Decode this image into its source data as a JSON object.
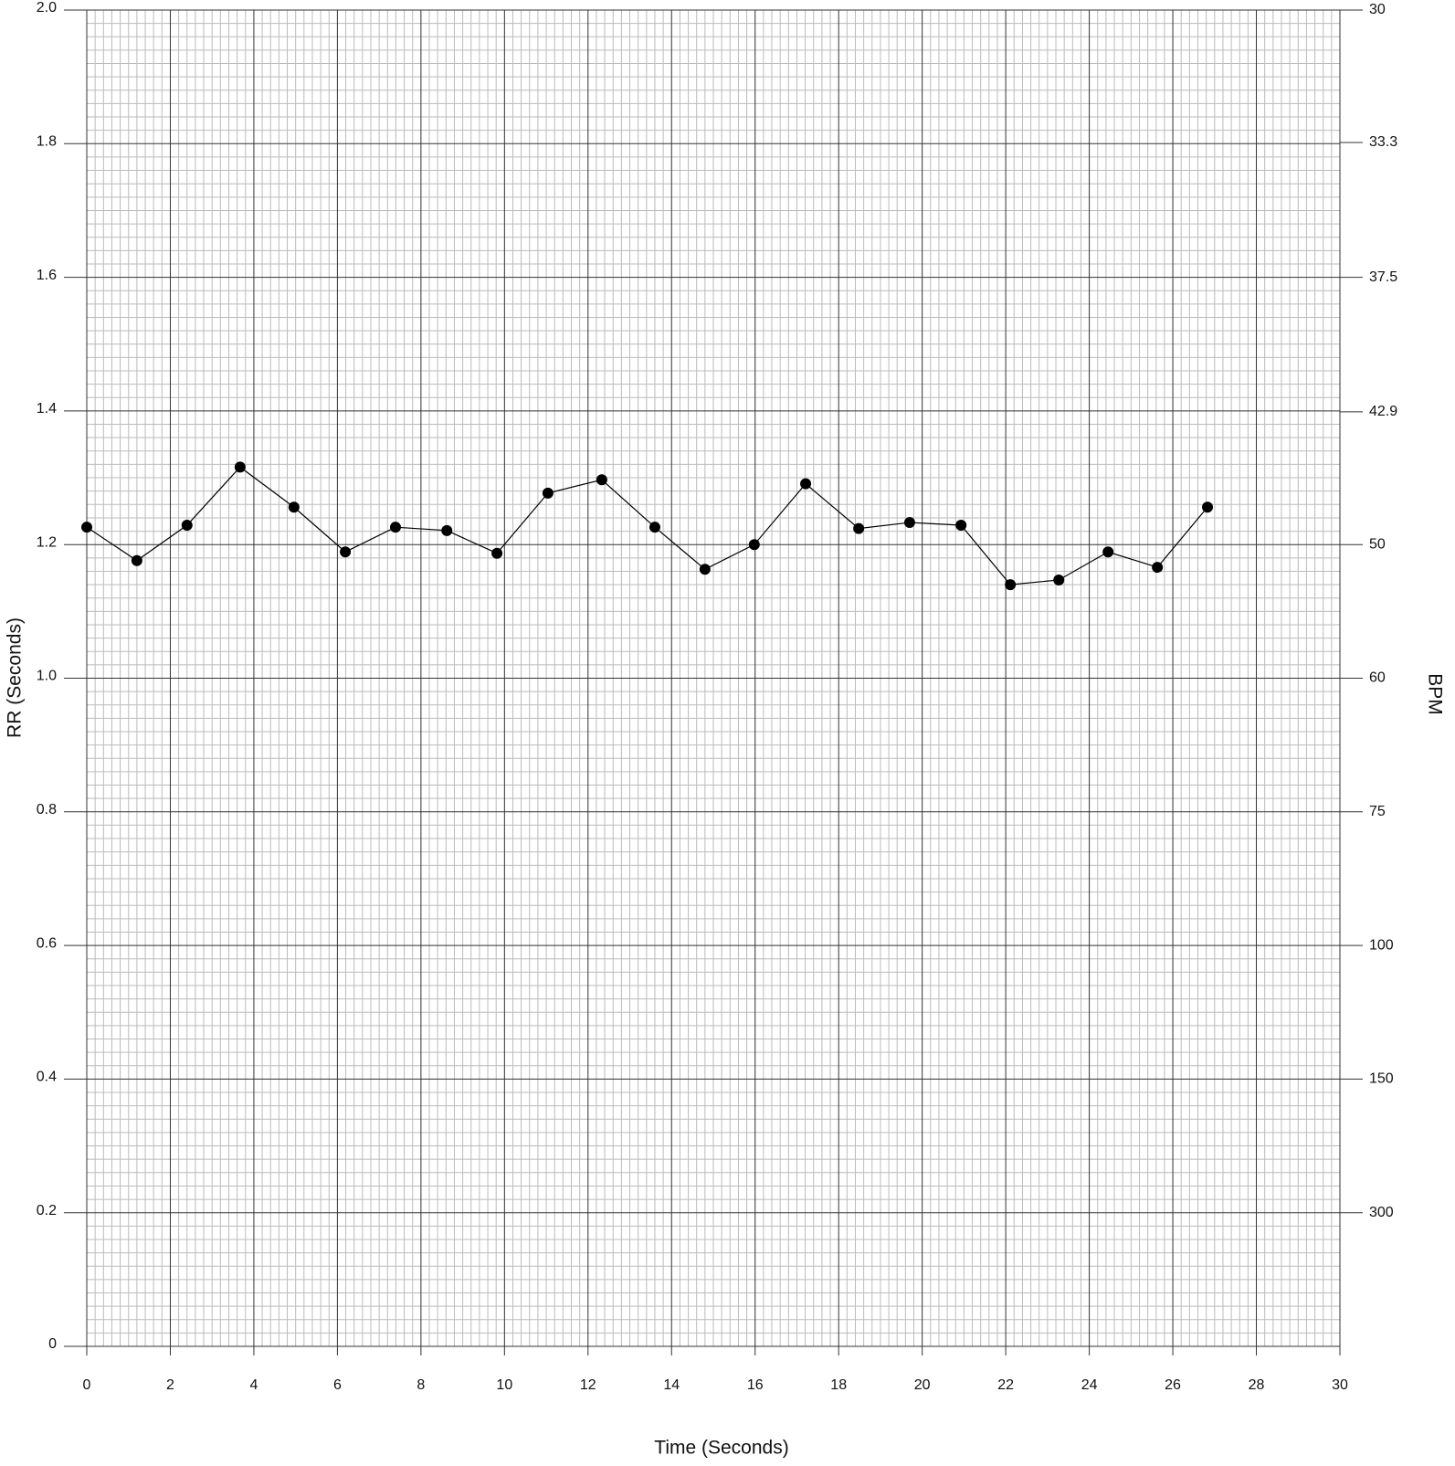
{
  "chart_data": {
    "type": "line",
    "x_label": "Time (Seconds)",
    "y_label": "RR (Seconds)",
    "y2_label": "BPM",
    "series": [
      {
        "color": "#000000",
        "x": [
          0,
          1.2,
          2.4,
          3.67,
          4.96,
          6.19,
          7.39,
          8.62,
          9.82,
          11.04,
          12.33,
          13.6,
          14.8,
          15.98,
          17.21,
          18.48,
          19.7,
          20.93,
          22.11,
          23.27,
          24.45,
          25.63,
          26.83
        ],
        "values": [
          1.226,
          1.176,
          1.229,
          1.316,
          1.256,
          1.189,
          1.226,
          1.221,
          1.187,
          1.277,
          1.297,
          1.226,
          1.163,
          1.2,
          1.291,
          1.224,
          1.233,
          1.229,
          1.14,
          1.147,
          1.189,
          1.166,
          1.256
        ]
      }
    ],
    "xlim": [
      0,
      30
    ],
    "xticks": [
      0,
      2,
      4,
      6,
      8,
      10,
      12,
      14,
      16,
      18,
      20,
      22,
      24,
      26,
      28,
      30
    ],
    "ylim": [
      0,
      2
    ],
    "yticks": [
      0,
      0.2,
      0.4,
      0.6,
      0.8,
      {
        "value": 1,
        "label": "1.0"
      },
      1.2,
      1.4,
      1.6,
      1.8,
      {
        "value": 2,
        "label": "2.0"
      }
    ],
    "y2scale": "reciprocal",
    "y2lim": [
      null,
      30
    ],
    "y2ticks": [
      30,
      33.3,
      37.5,
      42.9,
      50,
      60,
      75,
      100,
      150,
      300
    ],
    "grid": true,
    "minor_divisions": 10
  }
}
